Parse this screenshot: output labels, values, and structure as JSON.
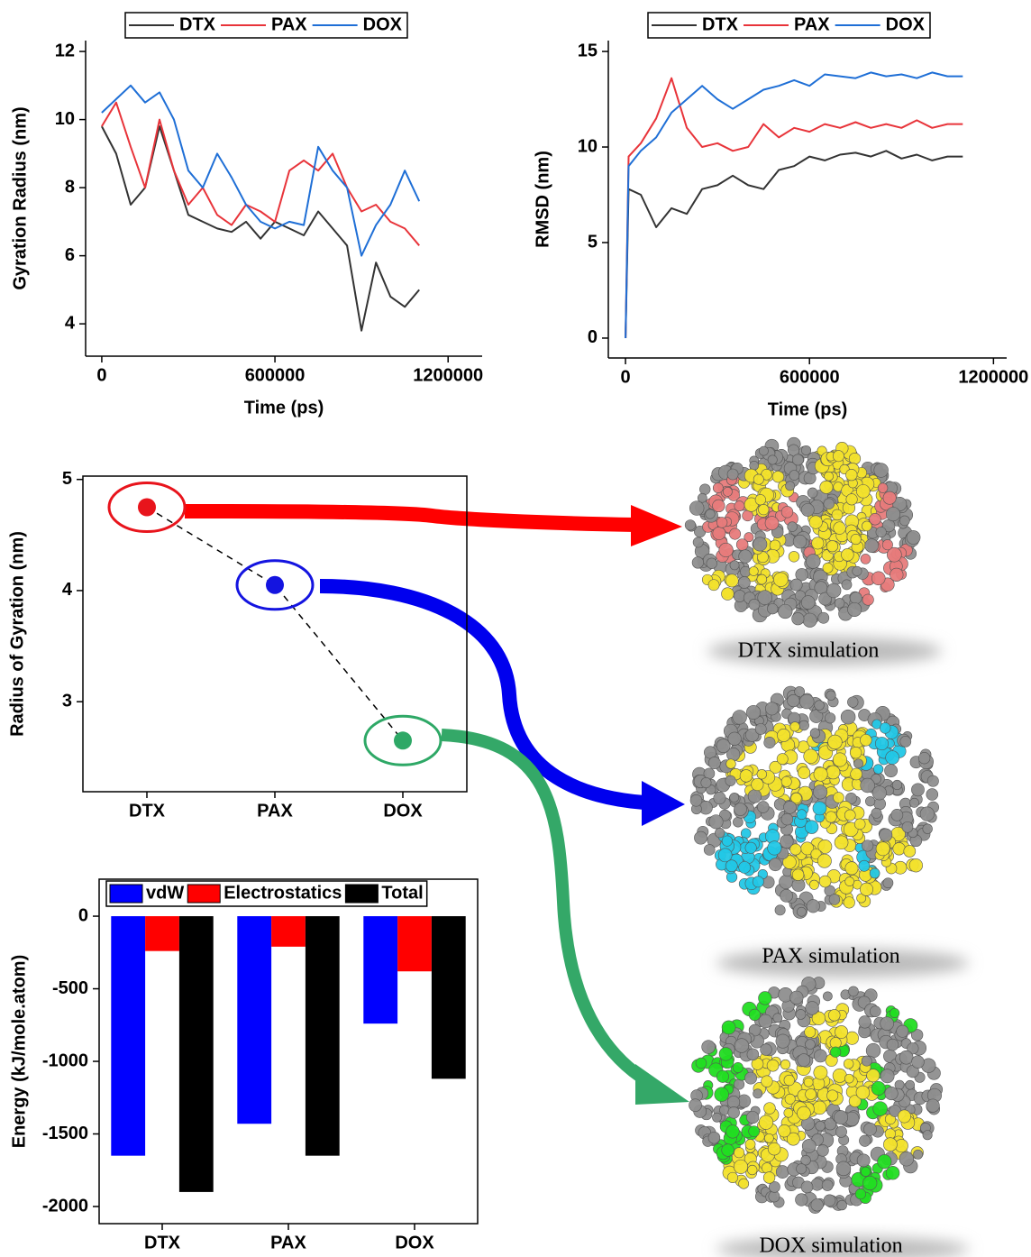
{
  "chart_data": [
    {
      "type": "line",
      "xlabel": "Time (ps)",
      "ylabel": "Gyration Radius (nm)",
      "x": [
        0,
        50000,
        100000,
        150000,
        200000,
        250000,
        300000,
        350000,
        400000,
        450000,
        500000,
        550000,
        600000,
        650000,
        700000,
        750000,
        800000,
        850000,
        900000,
        950000,
        1000000,
        1050000,
        1100000
      ],
      "series": [
        {
          "name": "DTX",
          "color": "#333333",
          "values": [
            9.8,
            9.0,
            7.5,
            8.0,
            9.8,
            8.5,
            7.2,
            7.0,
            6.8,
            6.7,
            7.0,
            6.5,
            7.0,
            6.8,
            6.6,
            7.3,
            6.8,
            6.3,
            3.8,
            5.8,
            4.8,
            4.5,
            5.0
          ]
        },
        {
          "name": "PAX",
          "color": "#e8343a",
          "values": [
            9.8,
            10.5,
            9.2,
            8.0,
            10.0,
            8.5,
            7.5,
            8.0,
            7.2,
            6.9,
            7.5,
            7.3,
            7.0,
            8.5,
            8.8,
            8.5,
            9.0,
            8.0,
            7.3,
            7.5,
            7.0,
            6.8,
            6.3
          ]
        },
        {
          "name": "DOX",
          "color": "#1f6fd6",
          "values": [
            10.2,
            10.6,
            11.0,
            10.5,
            10.8,
            10.0,
            8.5,
            8.0,
            9.0,
            8.3,
            7.5,
            7.0,
            6.8,
            7.0,
            6.9,
            9.2,
            8.5,
            8.0,
            6.0,
            6.9,
            7.5,
            8.5,
            7.6
          ]
        }
      ],
      "xlim": [
        -56000,
        1318000
      ],
      "xticks": [
        0,
        600000,
        1200000
      ],
      "ylim": [
        3.05,
        12.32
      ],
      "yticks": [
        4,
        6,
        8,
        10,
        12
      ],
      "legend": "top"
    },
    {
      "type": "line",
      "xlabel": "Time (ps)",
      "ylabel": "RMSD (nm)",
      "x": [
        0,
        10000,
        50000,
        100000,
        150000,
        200000,
        250000,
        300000,
        350000,
        400000,
        450000,
        500000,
        550000,
        600000,
        650000,
        700000,
        750000,
        800000,
        850000,
        900000,
        950000,
        1000000,
        1050000,
        1100000
      ],
      "series": [
        {
          "name": "DTX",
          "color": "#333333",
          "values": [
            0,
            7.8,
            7.5,
            5.8,
            6.8,
            6.5,
            7.8,
            8.0,
            8.5,
            8.0,
            7.8,
            8.8,
            9.0,
            9.5,
            9.3,
            9.6,
            9.7,
            9.5,
            9.8,
            9.4,
            9.6,
            9.3,
            9.5,
            9.5
          ]
        },
        {
          "name": "PAX",
          "color": "#e8343a",
          "values": [
            0,
            9.5,
            10.2,
            11.5,
            13.6,
            11.0,
            10.0,
            10.2,
            9.8,
            10.0,
            11.2,
            10.5,
            11.0,
            10.8,
            11.2,
            11.0,
            11.3,
            11.0,
            11.2,
            11.0,
            11.4,
            11.0,
            11.2,
            11.2
          ]
        },
        {
          "name": "DOX",
          "color": "#1f6fd6",
          "values": [
            0,
            9.0,
            9.8,
            10.5,
            11.8,
            12.5,
            13.2,
            12.5,
            12.0,
            12.5,
            13.0,
            13.2,
            13.5,
            13.2,
            13.8,
            13.7,
            13.6,
            13.9,
            13.7,
            13.8,
            13.6,
            13.9,
            13.7,
            13.7
          ]
        }
      ],
      "xlim": [
        -56000,
        1243000
      ],
      "xticks": [
        0,
        600000,
        1200000
      ],
      "ylim": [
        -1.04,
        15.57
      ],
      "yticks": [
        0,
        5,
        10,
        15
      ],
      "legend": "top"
    },
    {
      "type": "dot",
      "ylabel": "Radius of Gyration (nm)",
      "categories": [
        "DTX",
        "PAX",
        "DOX"
      ],
      "values": [
        4.75,
        4.05,
        2.65
      ],
      "colors": [
        "#e8141c",
        "#1414e0",
        "#2ea866"
      ],
      "line_style": "dashed",
      "ylim": [
        2.19,
        5.03
      ],
      "yticks": [
        3,
        4,
        5
      ]
    },
    {
      "type": "bar",
      "ylabel": "Energy  (kJ/mole.atom)",
      "categories": [
        "DTX",
        "PAX",
        "DOX"
      ],
      "series": [
        {
          "name": "vdW",
          "color": "#0000ff",
          "values": [
            -1650,
            -1430,
            -740
          ]
        },
        {
          "name": "Electrostatics",
          "color": "#ff0000",
          "values": [
            -240,
            -210,
            -380
          ]
        },
        {
          "name": "Total",
          "color": "#000000",
          "values": [
            -1900,
            -1650,
            -1120
          ]
        }
      ],
      "ylim": [
        -2118,
        255
      ],
      "yticks": [
        0,
        -500,
        -1000,
        -1500,
        -2000
      ],
      "legend": "upper right"
    }
  ],
  "captions": [
    "DTX simulation",
    "PAX simulation",
    "DOX simulation"
  ]
}
